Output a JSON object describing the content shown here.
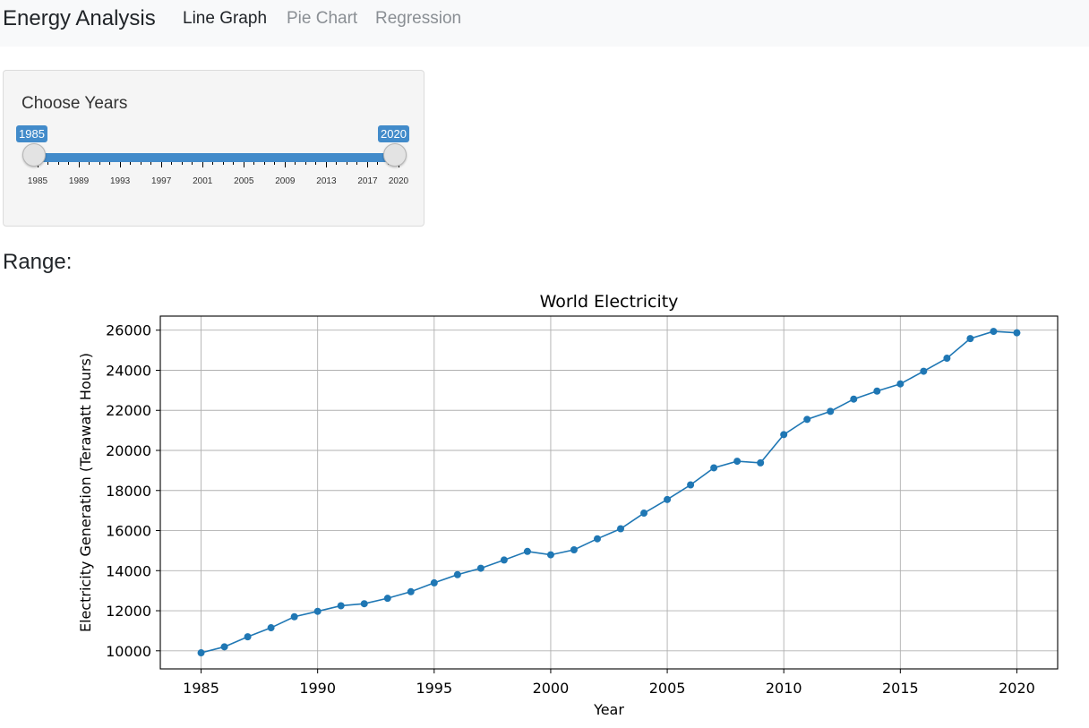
{
  "navbar": {
    "brand": "Energy Analysis",
    "tabs": [
      {
        "label": "Line Graph",
        "active": true
      },
      {
        "label": "Pie Chart",
        "active": false
      },
      {
        "label": "Regression",
        "active": false
      }
    ]
  },
  "sidebar": {
    "slider_label": "Choose Years",
    "slider": {
      "min": 1985,
      "max": 2020,
      "from": 1985,
      "to": 2020,
      "from_label": "1985",
      "to_label": "2020",
      "tick_labels": [
        "1985",
        "1989",
        "1993",
        "1997",
        "2001",
        "2005",
        "2009",
        "2013",
        "2017",
        "2020"
      ],
      "accent_color": "#428bca"
    }
  },
  "main": {
    "range_label": "Range:"
  },
  "chart_data": {
    "type": "line",
    "title": "World Electricity",
    "xlabel": "Year",
    "ylabel": "Electricity Generation (Terawatt Hours)",
    "grid": true,
    "x": [
      1985,
      1986,
      1987,
      1988,
      1989,
      1990,
      1991,
      1992,
      1993,
      1994,
      1995,
      1996,
      1997,
      1998,
      1999,
      2000,
      2001,
      2002,
      2003,
      2004,
      2005,
      2006,
      2007,
      2008,
      2009,
      2010,
      2011,
      2012,
      2013,
      2014,
      2015,
      2016,
      2017,
      2018,
      2019,
      2020
    ],
    "y": [
      9900,
      10200,
      10700,
      11150,
      11700,
      11970,
      12250,
      12350,
      12620,
      12950,
      13390,
      13800,
      14120,
      14530,
      14960,
      14790,
      15040,
      15590,
      16090,
      16870,
      17550,
      18280,
      19130,
      19460,
      19380,
      20790,
      21550,
      21950,
      22560,
      22960,
      23320,
      23950,
      24600,
      25580,
      25940,
      25870
    ],
    "xticks": [
      1985,
      1990,
      1995,
      2000,
      2005,
      2010,
      2015,
      2020
    ],
    "yticks": [
      10000,
      12000,
      14000,
      16000,
      18000,
      20000,
      22000,
      24000,
      26000
    ],
    "xlim": [
      1983.25,
      2021.75
    ],
    "ylim": [
      9097,
      26703
    ],
    "line_color": "#1f77b4"
  }
}
